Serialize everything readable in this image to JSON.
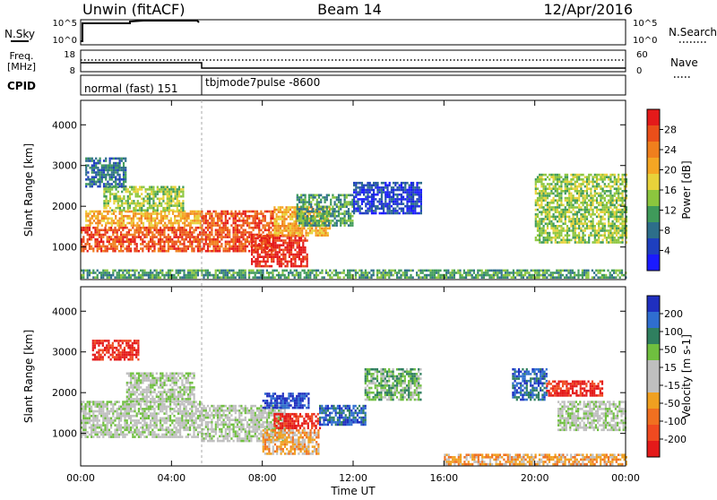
{
  "header": {
    "title": "Unwin (fitACF)",
    "beam": "Beam 14",
    "date": "12/Apr/2016"
  },
  "noise_panel": {
    "left_label": "N.Sky",
    "right_label": "N.Search",
    "left_ticks": [
      "10^5",
      "10^0"
    ],
    "right_ticks": [
      "10^5",
      "10^0"
    ]
  },
  "freq_panel": {
    "left_label_1": "Freq.",
    "left_label_2": "[MHz]",
    "left_ticks": [
      "18",
      "8"
    ],
    "right_label": "Nave",
    "right_ticks": [
      "60",
      "0"
    ]
  },
  "cpid_panel": {
    "label": "CPID",
    "mode_1": "normal (fast) 151",
    "mode_2": "tbjmode7pulse -8600"
  },
  "x_axis": {
    "label": "Time UT",
    "ticks": [
      "00:00",
      "04:00",
      "08:00",
      "12:00",
      "16:00",
      "20:00",
      "00:00"
    ]
  },
  "colors": {
    "power_scale": [
      "#1a1aff",
      "#1e3fbf",
      "#2d6e8a",
      "#3f9a5a",
      "#8cc63e",
      "#e8d23a",
      "#f5a623",
      "#f07f1d",
      "#ea4f1a",
      "#e41a1a"
    ],
    "velocity_scale": [
      "#1f2fbf",
      "#2f6ed0",
      "#2f7f5f",
      "#6fbf3f",
      "#bfbfbf",
      "#bfbfbf",
      "#f0a020",
      "#f07020",
      "#f04a20",
      "#e41a1a"
    ]
  },
  "chart_data": [
    {
      "type": "heatmap",
      "title": "",
      "ylabel": "Slant Range [km]",
      "xlabel": "",
      "y_ticks": [
        "1000",
        "2000",
        "3000",
        "4000"
      ],
      "ylim": [
        200,
        4600
      ],
      "xlim": [
        0,
        24
      ],
      "colorbar": {
        "label": "Power [dB]",
        "ticks": [
          "4",
          "8",
          "12",
          "16",
          "20",
          "24",
          "28"
        ]
      },
      "regions": [
        {
          "t0": 0.0,
          "t1": 5.3,
          "r0": 900,
          "r1": 1500,
          "level": 8
        },
        {
          "t0": 0.2,
          "t1": 5.3,
          "r0": 1500,
          "r1": 1900,
          "level": 6
        },
        {
          "t0": 1.0,
          "t1": 4.5,
          "r0": 1900,
          "r1": 2500,
          "level": 4
        },
        {
          "t0": 0.2,
          "t1": 2.0,
          "r0": 2500,
          "r1": 3200,
          "level": 2
        },
        {
          "t0": 5.3,
          "t1": 8.5,
          "r0": 900,
          "r1": 1900,
          "level": 8
        },
        {
          "t0": 7.5,
          "t1": 10.0,
          "r0": 500,
          "r1": 1300,
          "level": 9
        },
        {
          "t0": 8.5,
          "t1": 11.0,
          "r0": 1300,
          "r1": 2000,
          "level": 6
        },
        {
          "t0": 9.5,
          "t1": 12.0,
          "r0": 1500,
          "r1": 2300,
          "level": 3
        },
        {
          "t0": 12.0,
          "t1": 15.0,
          "r0": 1800,
          "r1": 2600,
          "level": 1
        },
        {
          "t0": 20.0,
          "t1": 24.0,
          "r0": 1100,
          "r1": 2800,
          "level": 4
        },
        {
          "t0": 0.0,
          "t1": 24.0,
          "r0": 250,
          "r1": 450,
          "level": 3
        }
      ]
    },
    {
      "type": "heatmap",
      "title": "",
      "ylabel": "Slant Range [km]",
      "xlabel": "Time UT",
      "y_ticks": [
        "1000",
        "2000",
        "3000",
        "4000"
      ],
      "ylim": [
        200,
        4600
      ],
      "xlim": [
        0,
        24
      ],
      "colorbar": {
        "label": "Velocity [m s-1]",
        "ticks": [
          "200",
          "100",
          "50",
          "15",
          "-15",
          "-50",
          "-100",
          "-200"
        ]
      },
      "regions": [
        {
          "t0": 0.0,
          "t1": 5.3,
          "r0": 900,
          "r1": 1800,
          "level": 4
        },
        {
          "t0": 0.5,
          "t1": 2.5,
          "r0": 2800,
          "r1": 3300,
          "level": 9
        },
        {
          "t0": 2.0,
          "t1": 5.0,
          "r0": 1800,
          "r1": 2500,
          "level": 4
        },
        {
          "t0": 5.3,
          "t1": 9.0,
          "r0": 800,
          "r1": 1700,
          "level": 4
        },
        {
          "t0": 8.0,
          "t1": 10.5,
          "r0": 500,
          "r1": 1100,
          "level": 6
        },
        {
          "t0": 8.5,
          "t1": 10.5,
          "r0": 1100,
          "r1": 1500,
          "level": 9
        },
        {
          "t0": 8.0,
          "t1": 10.0,
          "r0": 1600,
          "r1": 2000,
          "level": 0
        },
        {
          "t0": 10.5,
          "t1": 12.5,
          "r0": 1200,
          "r1": 1700,
          "level": 1
        },
        {
          "t0": 12.5,
          "t1": 15.0,
          "r0": 1800,
          "r1": 2600,
          "level": 3
        },
        {
          "t0": 19.0,
          "t1": 20.5,
          "r0": 1800,
          "r1": 2600,
          "level": 1
        },
        {
          "t0": 20.5,
          "t1": 23.0,
          "r0": 1900,
          "r1": 2300,
          "level": 9
        },
        {
          "t0": 21.0,
          "t1": 24.0,
          "r0": 1100,
          "r1": 1800,
          "level": 4
        },
        {
          "t0": 16.0,
          "t1": 24.0,
          "r0": 250,
          "r1": 500,
          "level": 6
        }
      ]
    }
  ]
}
